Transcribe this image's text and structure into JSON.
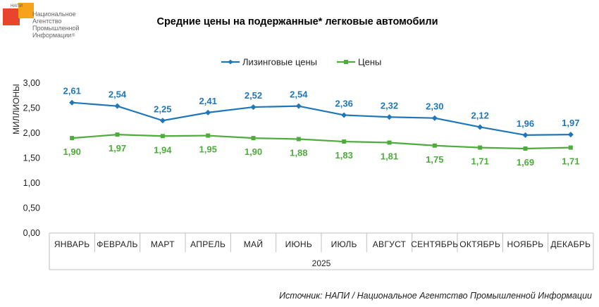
{
  "logo": {
    "abbr": "НАПИ",
    "line1": "Национальное",
    "line2": "Агентство",
    "line3": "Промышленной",
    "line4": "Информации",
    "mark": "®",
    "colors": {
      "red": "#e8442e",
      "orange": "#f7a21b"
    }
  },
  "source_note": "Источник: НАПИ / Национальное Агентство Промышленной Информации",
  "chart_data": {
    "type": "line",
    "title": "Средние цены на подержанные* легковые автомобили",
    "ylabel": "МИЛЛИОНЫ",
    "xlabel": "2025",
    "ylim": [
      0,
      3
    ],
    "yticks": [
      "0,00",
      "0,50",
      "1,00",
      "1,50",
      "2,00",
      "2,50",
      "3,00"
    ],
    "grid": false,
    "legend_position": "top",
    "categories": [
      "ЯНВАРЬ",
      "ФЕВРАЛЬ",
      "МАРТ",
      "АПРЕЛЬ",
      "МАЙ",
      "ИЮНЬ",
      "ИЮЛЬ",
      "АВГУСТ",
      "СЕНТЯБРЬ",
      "ОКТЯБРЬ",
      "НОЯБРЬ",
      "ДЕКАБРЬ"
    ],
    "series": [
      {
        "name": "Лизинговые цены",
        "color": "#1f77b9",
        "marker": "diamond",
        "values": [
          2.61,
          2.54,
          2.25,
          2.41,
          2.52,
          2.54,
          2.36,
          2.32,
          2.3,
          2.12,
          1.96,
          1.97
        ],
        "labels": [
          "2,61",
          "2,54",
          "2,25",
          "2,41",
          "2,52",
          "2,54",
          "2,36",
          "2,32",
          "2,30",
          "2,12",
          "1,96",
          "1,97"
        ],
        "label_position": "above"
      },
      {
        "name": "Цены",
        "color": "#4eac3c",
        "marker": "square",
        "values": [
          1.9,
          1.97,
          1.94,
          1.95,
          1.9,
          1.88,
          1.83,
          1.81,
          1.75,
          1.71,
          1.69,
          1.71
        ],
        "labels": [
          "1,90",
          "1,97",
          "1,94",
          "1,95",
          "1,90",
          "1,88",
          "1,83",
          "1,81",
          "1,75",
          "1,71",
          "1,69",
          "1,71"
        ],
        "label_position": "below"
      }
    ]
  }
}
